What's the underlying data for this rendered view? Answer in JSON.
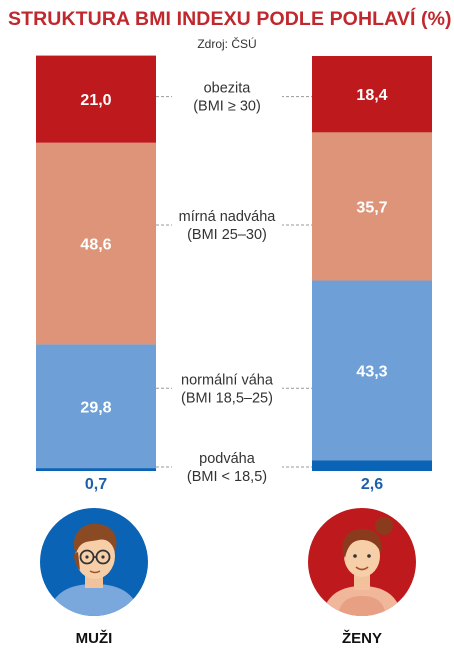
{
  "title": "STRUKTURA BMI INDEXU PODLE POHLAVÍ (%)",
  "source": "Zdroj: ČSÚ",
  "chart_data": {
    "type": "bar",
    "stacked": true,
    "categories": [
      "MUŽI",
      "ŽENY"
    ],
    "series": [
      {
        "name": "podváha",
        "range": "(BMI < 18,5)",
        "values": [
          0.7,
          2.6
        ],
        "labels": [
          "0,7",
          "2,6"
        ],
        "color": "#0b63b5"
      },
      {
        "name": "normální váha",
        "range": "(BMI 18,5–25)",
        "values": [
          29.8,
          43.3
        ],
        "labels": [
          "29,8",
          "43,3"
        ],
        "color": "#6e9fd6"
      },
      {
        "name": "mírná nadváha",
        "range": "(BMI 25–30)",
        "values": [
          48.6,
          35.7
        ],
        "labels": [
          "48,6",
          "35,7"
        ],
        "color": "#de9478"
      },
      {
        "name": "obezita",
        "range": "(BMI ≥ 30)",
        "values": [
          21.0,
          18.4
        ],
        "labels": [
          "21,0",
          "18,4"
        ],
        "color": "#be1a1d"
      }
    ],
    "ylim": [
      0,
      100
    ],
    "colors": {
      "title": "#c0282d",
      "underweight_value": "#1f5fa8",
      "men_circle": "#0a63b5",
      "women_circle": "#be1a1d"
    }
  },
  "avatars": {
    "men": {
      "icon": "man-avatar-icon",
      "label": "MUŽI"
    },
    "women": {
      "icon": "woman-avatar-icon",
      "label": "ŽENY"
    }
  }
}
